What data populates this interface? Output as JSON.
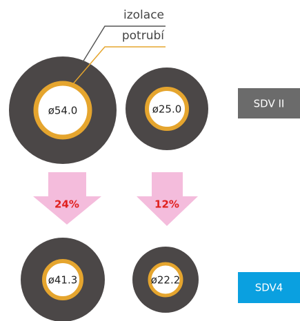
{
  "legend": {
    "insulation": "izolace",
    "pipe": "potrubí"
  },
  "rows": [
    {
      "name": "SDV II",
      "pipes": [
        "ø54.0",
        "ø25.0"
      ]
    },
    {
      "name": "SDV4",
      "pipes": [
        "ø41.3",
        "ø22.2"
      ]
    }
  ],
  "reductions": [
    "24%",
    "12%"
  ]
}
